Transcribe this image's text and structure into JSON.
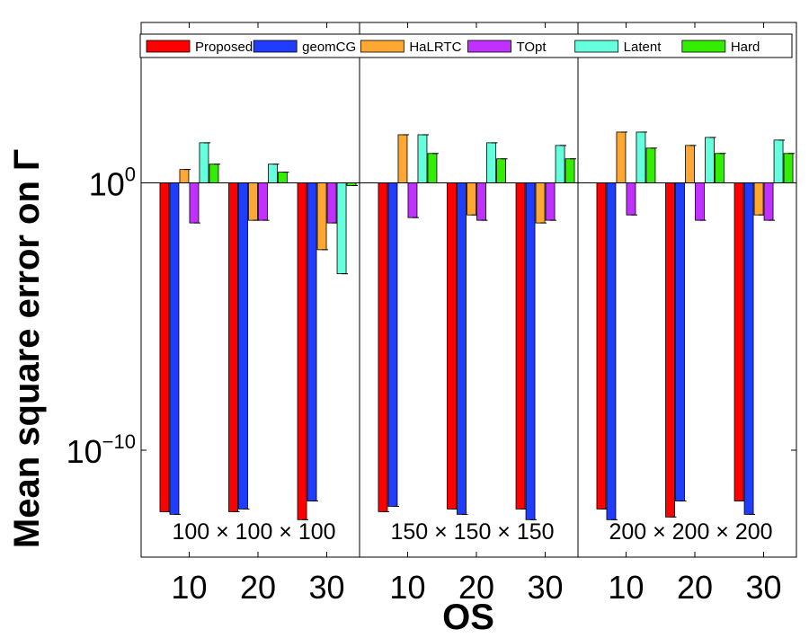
{
  "chart_data": {
    "type": "bar",
    "scale": "log",
    "ylabel": "Mean square error on Γ",
    "xlabel": "OS",
    "ylim_exp": [
      -14,
      6
    ],
    "baseline_exp": 0,
    "yticks": [
      {
        "exp": 0,
        "base": "10",
        "sup": "0"
      },
      {
        "exp": -10,
        "base": "10",
        "sup": "−10"
      }
    ],
    "categories": [
      "10",
      "20",
      "30"
    ],
    "panels": [
      {
        "label": "100 × 100 × 100"
      },
      {
        "label": "150 × 150 × 150"
      },
      {
        "label": "200 × 200 × 200"
      }
    ],
    "series": [
      {
        "name": "Proposed",
        "color": "#ff0000",
        "log10_values": [
          [
            -12.3,
            -12.3,
            -12.6
          ],
          [
            -12.3,
            -12.2,
            -12.2
          ],
          [
            -12.2,
            -12.5,
            -11.9
          ]
        ]
      },
      {
        "name": "geomCG",
        "color": "#1f3cff",
        "log10_values": [
          [
            -12.4,
            -12.2,
            -11.9
          ],
          [
            -12.1,
            -12.4,
            -12.6
          ],
          [
            -12.6,
            -11.9,
            -12.4
          ]
        ]
      },
      {
        "name": "HaLRTC",
        "color": "#ffa733",
        "log10_values": [
          [
            0.5,
            -1.4,
            -2.5
          ],
          [
            1.8,
            -1.2,
            -1.5
          ],
          [
            1.9,
            1.4,
            -1.2
          ]
        ]
      },
      {
        "name": "TOpt",
        "color": "#c031ff",
        "log10_values": [
          [
            -1.5,
            -1.4,
            -1.5
          ],
          [
            -1.3,
            -1.4,
            -1.4
          ],
          [
            -1.2,
            -1.4,
            -1.4
          ]
        ]
      },
      {
        "name": "Latent",
        "color": "#66ffdd",
        "log10_values": [
          [
            1.5,
            0.7,
            -3.4
          ],
          [
            1.8,
            1.5,
            1.4
          ],
          [
            1.9,
            1.7,
            1.6
          ]
        ]
      },
      {
        "name": "Hard",
        "color": "#33ee00",
        "log10_values": [
          [
            0.7,
            0.4,
            -0.1
          ],
          [
            1.1,
            0.9,
            0.9
          ],
          [
            1.3,
            1.1,
            1.1
          ]
        ]
      }
    ]
  }
}
